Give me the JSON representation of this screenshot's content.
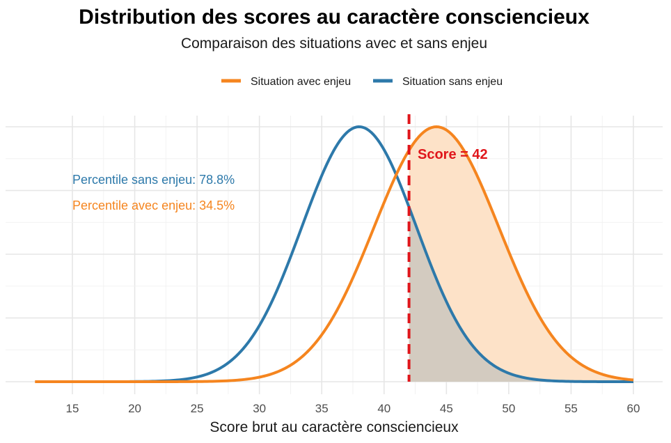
{
  "chart_data": {
    "type": "area",
    "title": "Distribution des scores au caractère consciencieux",
    "subtitle": "Comparaison des situations avec et sans enjeu",
    "xlabel": "Score brut au caractère consciencieux",
    "ylabel": "",
    "xlim": [
      12,
      60
    ],
    "xticks": [
      15,
      20,
      25,
      30,
      35,
      40,
      45,
      50,
      55,
      60
    ],
    "grid": true,
    "legend_position": "top",
    "series": [
      {
        "name": "Situation avec enjeu",
        "color": "#f5851f",
        "fill": "#fde2c8",
        "mean": 44.2,
        "sd": 5.0,
        "x_start": 12,
        "x_end": 60
      },
      {
        "name": "Situation sans enjeu",
        "color": "#2d79aa",
        "fill": "#d3cbc0",
        "mean": 38.0,
        "sd": 4.6,
        "x_start": 19.6,
        "x_end": 60
      }
    ],
    "reference_line": {
      "x": 42,
      "color": "#e0161b",
      "style": "dashed",
      "label": "Score = 42"
    },
    "annotations": [
      {
        "text": "Percentile sans enjeu: 78.8%",
        "color": "#2d79aa"
      },
      {
        "text": "Percentile avec enjeu: 34.5%",
        "color": "#f5851f"
      }
    ]
  }
}
